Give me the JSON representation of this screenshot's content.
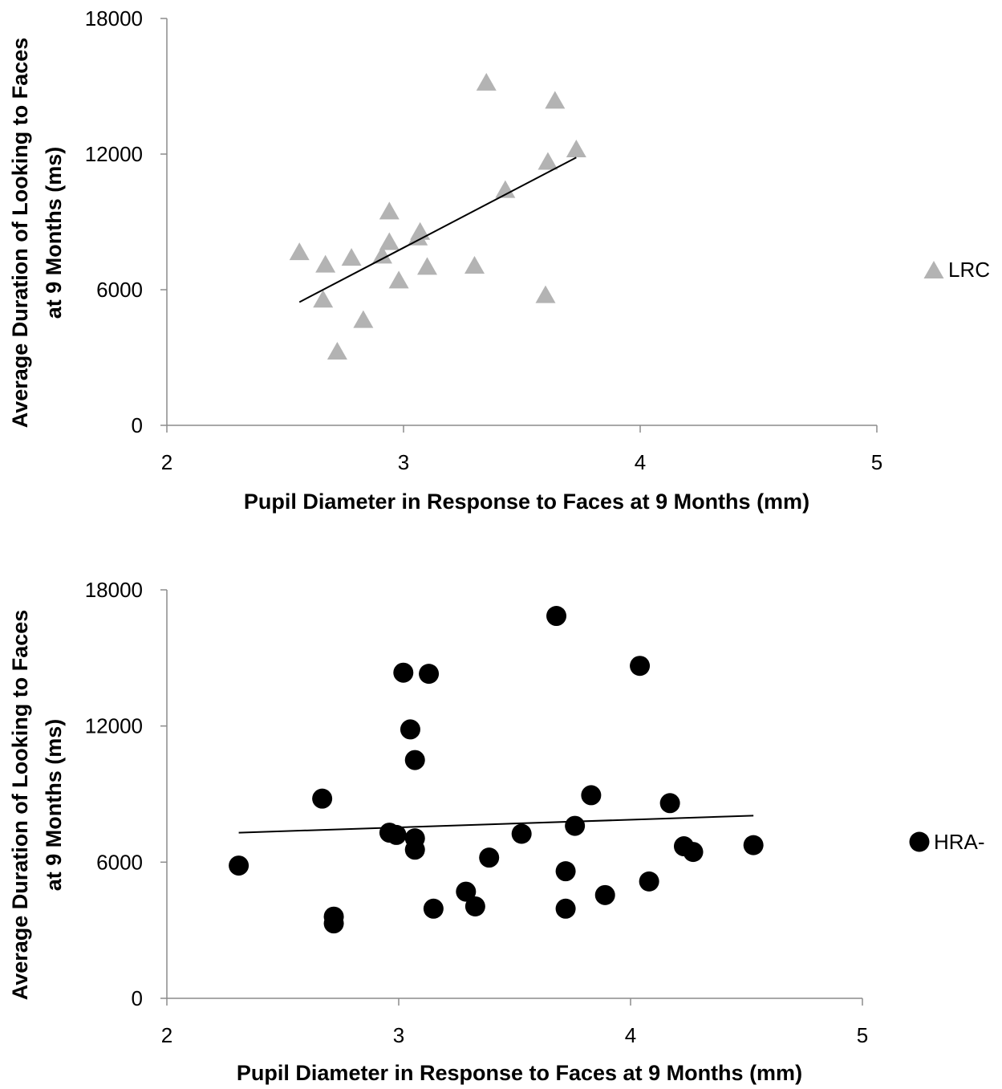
{
  "chart_data": [
    {
      "type": "scatter",
      "title": "",
      "xlabel": "Pupil Diameter in Response to Faces at 9 Months (mm)",
      "ylabel_lines": [
        "Average Duration of Looking to Faces",
        "at 9 Months (ms)"
      ],
      "xlim": [
        2,
        5
      ],
      "ylim": [
        0,
        18000
      ],
      "xticks": [
        "2",
        "3",
        "4",
        "5"
      ],
      "yticks": [
        "0",
        "6000",
        "12000",
        "18000"
      ],
      "legend_position": "right",
      "grid": false,
      "series": [
        {
          "name": "LRC",
          "marker": "triangle",
          "color": "#b3b3b3",
          "points": [
            [
              2.56,
              7700
            ],
            [
              2.67,
              7150
            ],
            [
              2.66,
              5600
            ],
            [
              2.72,
              3300
            ],
            [
              2.78,
              7450
            ],
            [
              2.83,
              4700
            ],
            [
              2.91,
              7550
            ],
            [
              2.94,
              8150
            ],
            [
              2.94,
              9500
            ],
            [
              2.98,
              6450
            ],
            [
              3.06,
              8350
            ],
            [
              3.07,
              8600
            ],
            [
              3.1,
              7050
            ],
            [
              3.3,
              7100
            ],
            [
              3.35,
              15200
            ],
            [
              3.43,
              10450
            ],
            [
              3.6,
              5800
            ],
            [
              3.61,
              11700
            ],
            [
              3.64,
              14400
            ],
            [
              3.73,
              12250
            ]
          ],
          "trendline": [
            [
              2.56,
              5450
            ],
            [
              3.73,
              11850
            ]
          ]
        }
      ]
    },
    {
      "type": "scatter",
      "title": "",
      "xlabel": "Pupil Diameter in Response to Faces at 9 Months (mm)",
      "ylabel_lines": [
        "Average Duration of Looking to Faces",
        "at 9 Months (ms)"
      ],
      "xlim": [
        2,
        5
      ],
      "ylim": [
        0,
        18000
      ],
      "xticks": [
        "2",
        "3",
        "4",
        "5"
      ],
      "yticks": [
        "0",
        "6000",
        "12000",
        "18000"
      ],
      "legend_position": "right",
      "grid": false,
      "series": [
        {
          "name": "HRA-",
          "marker": "circle",
          "color": "#000000",
          "points": [
            [
              2.31,
              5850
            ],
            [
              2.67,
              8800
            ],
            [
              2.72,
              3600
            ],
            [
              2.72,
              3300
            ],
            [
              2.96,
              7300
            ],
            [
              2.99,
              7200
            ],
            [
              3.02,
              14350
            ],
            [
              3.05,
              11850
            ],
            [
              3.07,
              10500
            ],
            [
              3.07,
              7050
            ],
            [
              3.07,
              6550
            ],
            [
              3.13,
              14300
            ],
            [
              3.15,
              3950
            ],
            [
              3.29,
              4700
            ],
            [
              3.33,
              4050
            ],
            [
              3.39,
              6200
            ],
            [
              3.53,
              7250
            ],
            [
              3.68,
              16850
            ],
            [
              3.72,
              5600
            ],
            [
              3.72,
              3950
            ],
            [
              3.76,
              7600
            ],
            [
              3.83,
              8950
            ],
            [
              3.89,
              4550
            ],
            [
              4.04,
              14650
            ],
            [
              4.08,
              5150
            ],
            [
              4.17,
              8600
            ],
            [
              4.23,
              6700
            ],
            [
              4.27,
              6450
            ],
            [
              4.53,
              6750
            ]
          ],
          "trendline": [
            [
              2.31,
              7300
            ],
            [
              4.53,
              8050
            ]
          ]
        }
      ]
    }
  ]
}
